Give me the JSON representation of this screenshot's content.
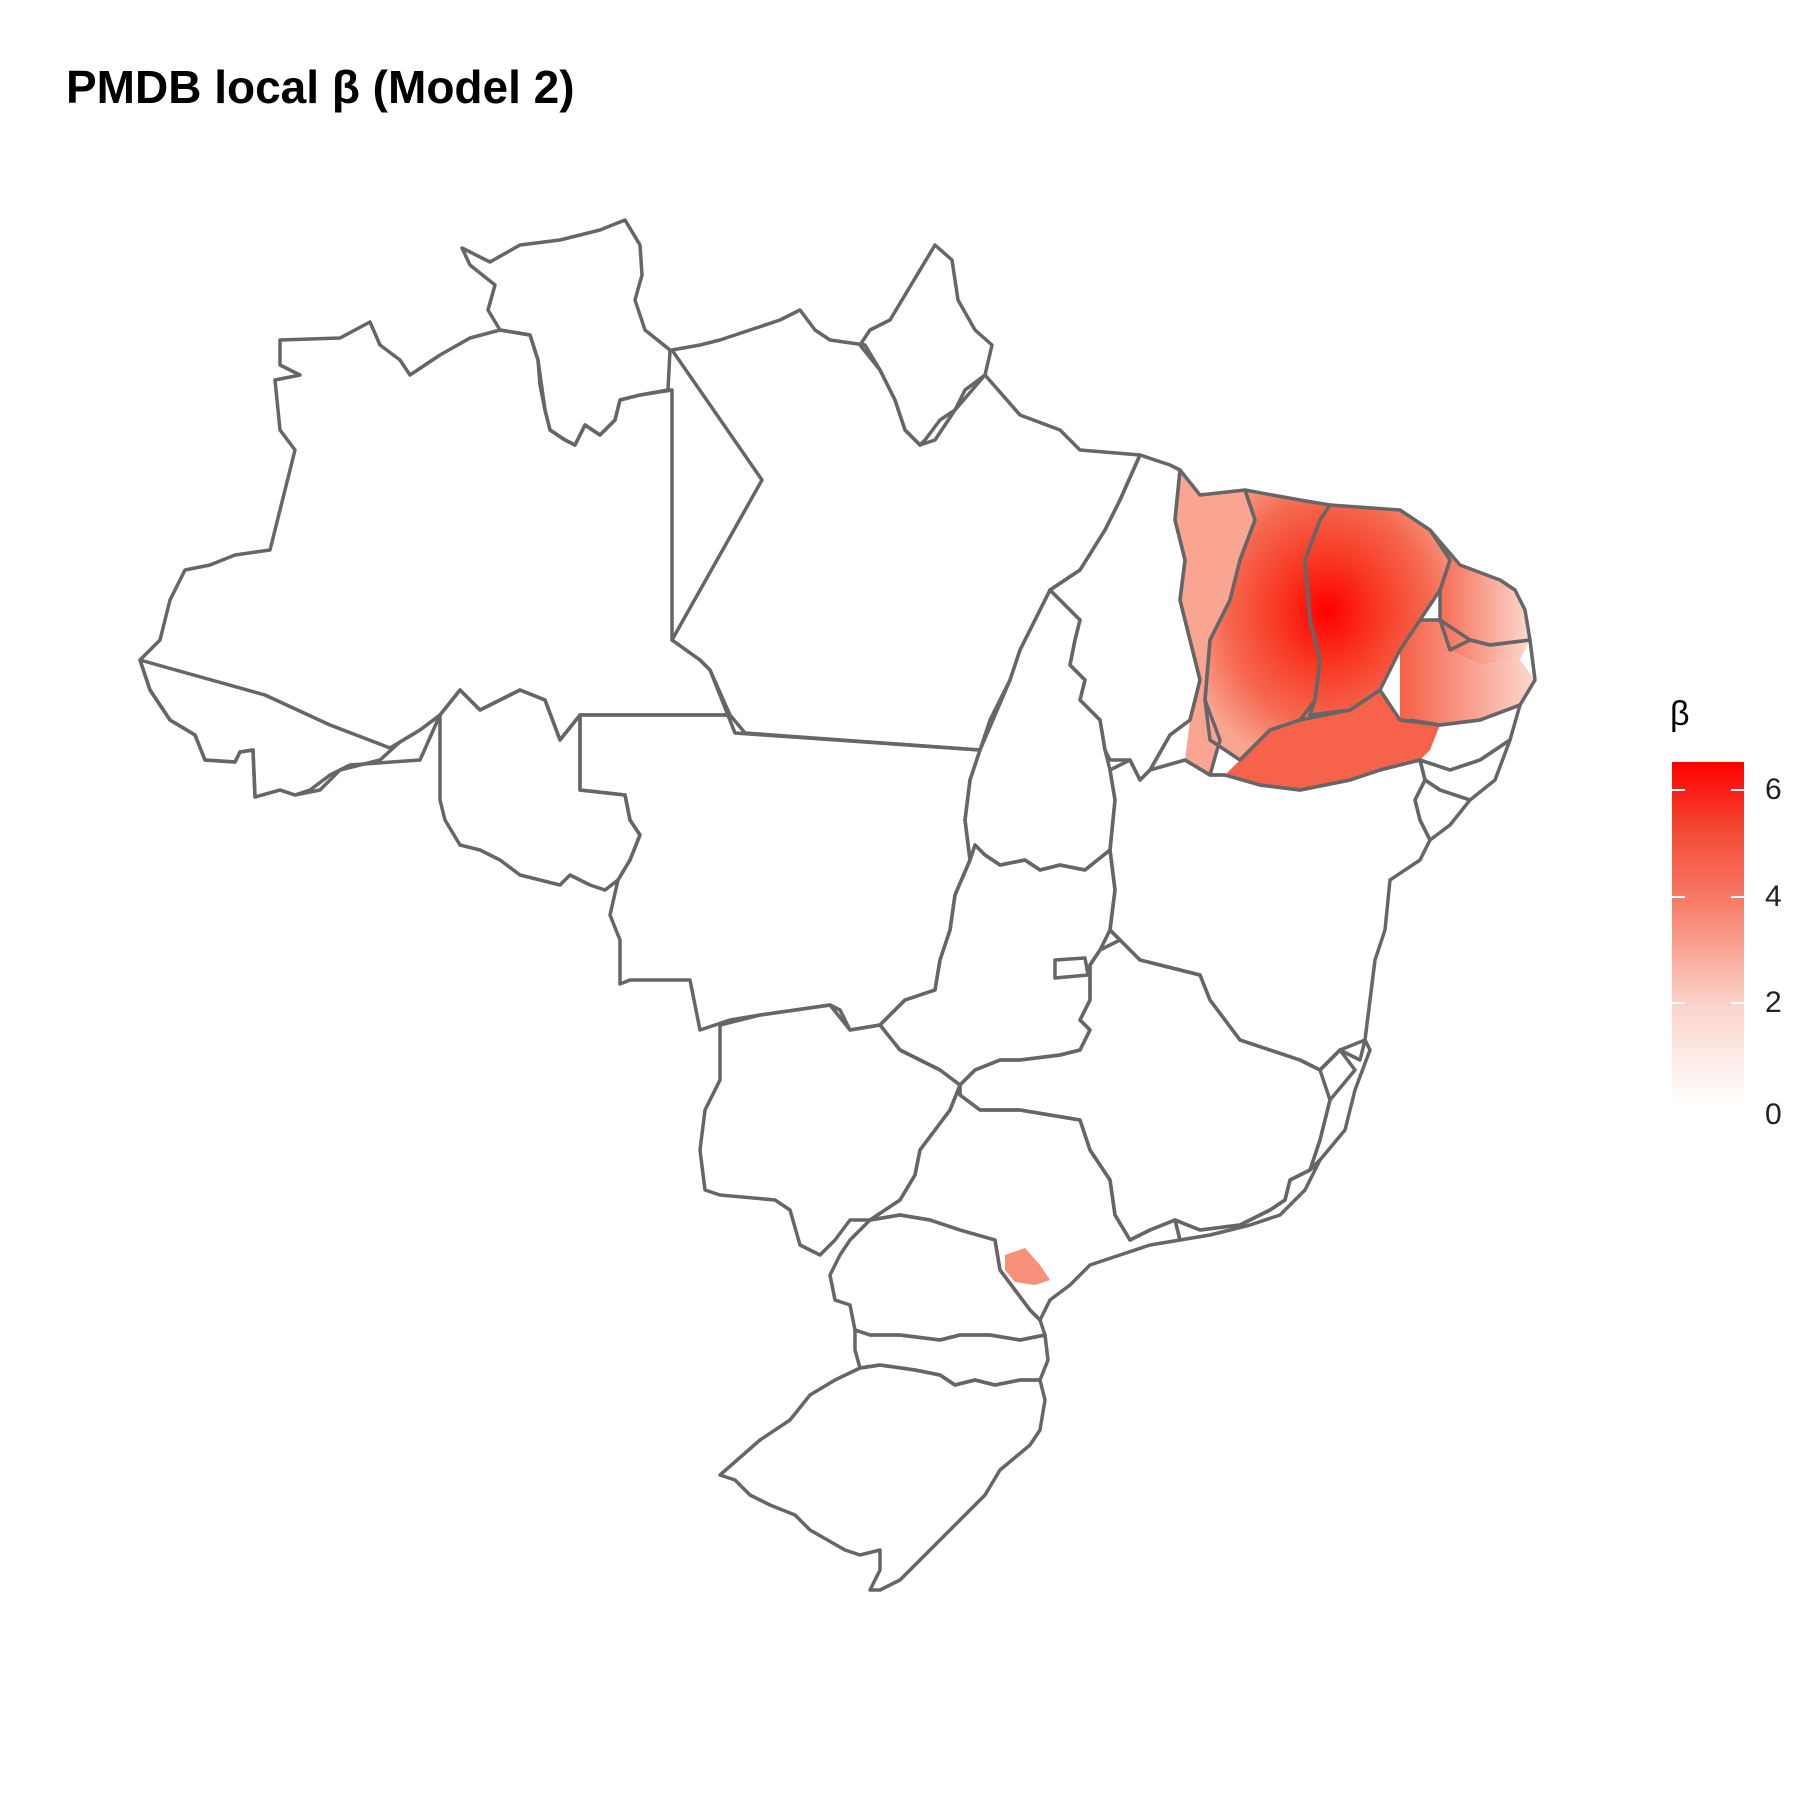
{
  "title": "PMDB local β (Model 2)",
  "legend": {
    "title": "β",
    "ticks": [
      {
        "label": "0",
        "value": 0
      },
      {
        "label": "2",
        "value": 2
      },
      {
        "label": "4",
        "value": 4
      },
      {
        "label": "6",
        "value": 6
      }
    ],
    "range": [
      0,
      6.5
    ],
    "low_color": "#ffffff",
    "high_color": "#ff0000"
  },
  "colors": {
    "border": "#666666",
    "fill_default": "#ffffff"
  },
  "chart_data": {
    "type": "choropleth",
    "title": "PMDB local β (Model 2)",
    "legend_title": "β",
    "scale": {
      "min": 0,
      "max": 6.5,
      "ticks": [
        0,
        2,
        4,
        6
      ],
      "low": "#ffffff",
      "high": "#ff0000"
    },
    "legend_position": "right",
    "regions_with_values": [
      {
        "area": "west Ceará / Piauí border",
        "beta": 2
      },
      {
        "area": "central Ceará",
        "beta": 6.5
      },
      {
        "area": "Rio Grande do Norte",
        "beta": 4
      },
      {
        "area": "Paraíba",
        "beta": 1.5
      },
      {
        "area": "south Ceará / Pernambuco",
        "beta": 3.5
      },
      {
        "area": "east Paraná",
        "beta": 3
      }
    ]
  }
}
